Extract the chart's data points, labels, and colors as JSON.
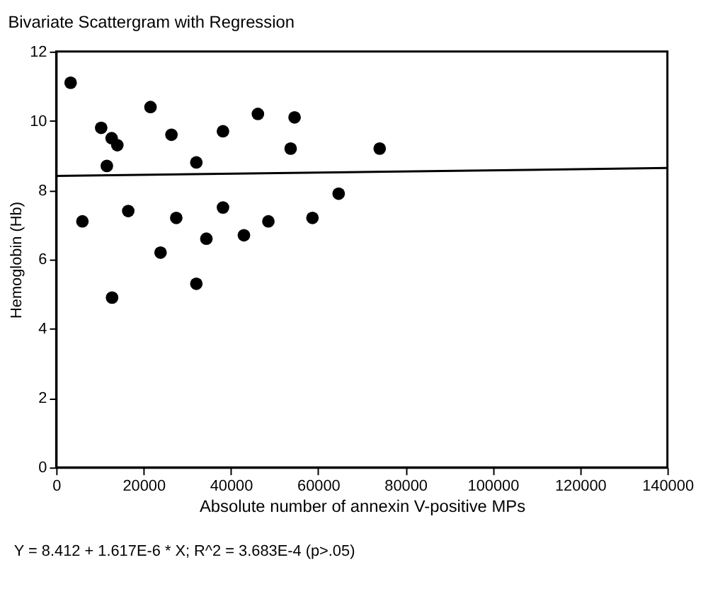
{
  "chart_data": {
    "type": "scatter",
    "title": "Bivariate Scattergram with Regression",
    "xlabel": "Absolute number of annexin V-positive MPs",
    "ylabel": "Hemoglobin (Hb)",
    "annotations": [
      "Y = 8.412 + 1.617E-6 * X; R^2 = 3.683E-4 (p>.05)"
    ],
    "xlim": [
      0,
      140000
    ],
    "xticks": [
      0,
      20000,
      40000,
      60000,
      80000,
      100000,
      120000,
      140000
    ],
    "ylim": [
      0,
      12
    ],
    "yticks": [
      0,
      2,
      4,
      6,
      8,
      10,
      12
    ],
    "grid": false,
    "legend": false,
    "series": [
      {
        "type": "scatter",
        "marker": "circle",
        "color": "#000000",
        "x": [
          3300,
          6000,
          10300,
          11600,
          12700,
          14000,
          16500,
          21600,
          23900,
          26400,
          27500,
          32100,
          34400,
          38200,
          38200,
          43000,
          46200,
          48600,
          53700,
          54600,
          58700,
          64700,
          74100,
          12800,
          32100
        ],
        "values": [
          11.1,
          7.1,
          9.8,
          8.7,
          9.5,
          9.3,
          7.4,
          10.4,
          6.2,
          9.6,
          7.2,
          8.8,
          6.6,
          9.7,
          7.5,
          6.7,
          10.2,
          7.1,
          9.2,
          10.1,
          7.2,
          7.9,
          9.2,
          4.9,
          5.3
        ]
      },
      {
        "type": "line",
        "marker": "none",
        "color": "#000000",
        "x": [
          0,
          140000
        ],
        "values": [
          8.41,
          8.64
        ]
      }
    ]
  }
}
